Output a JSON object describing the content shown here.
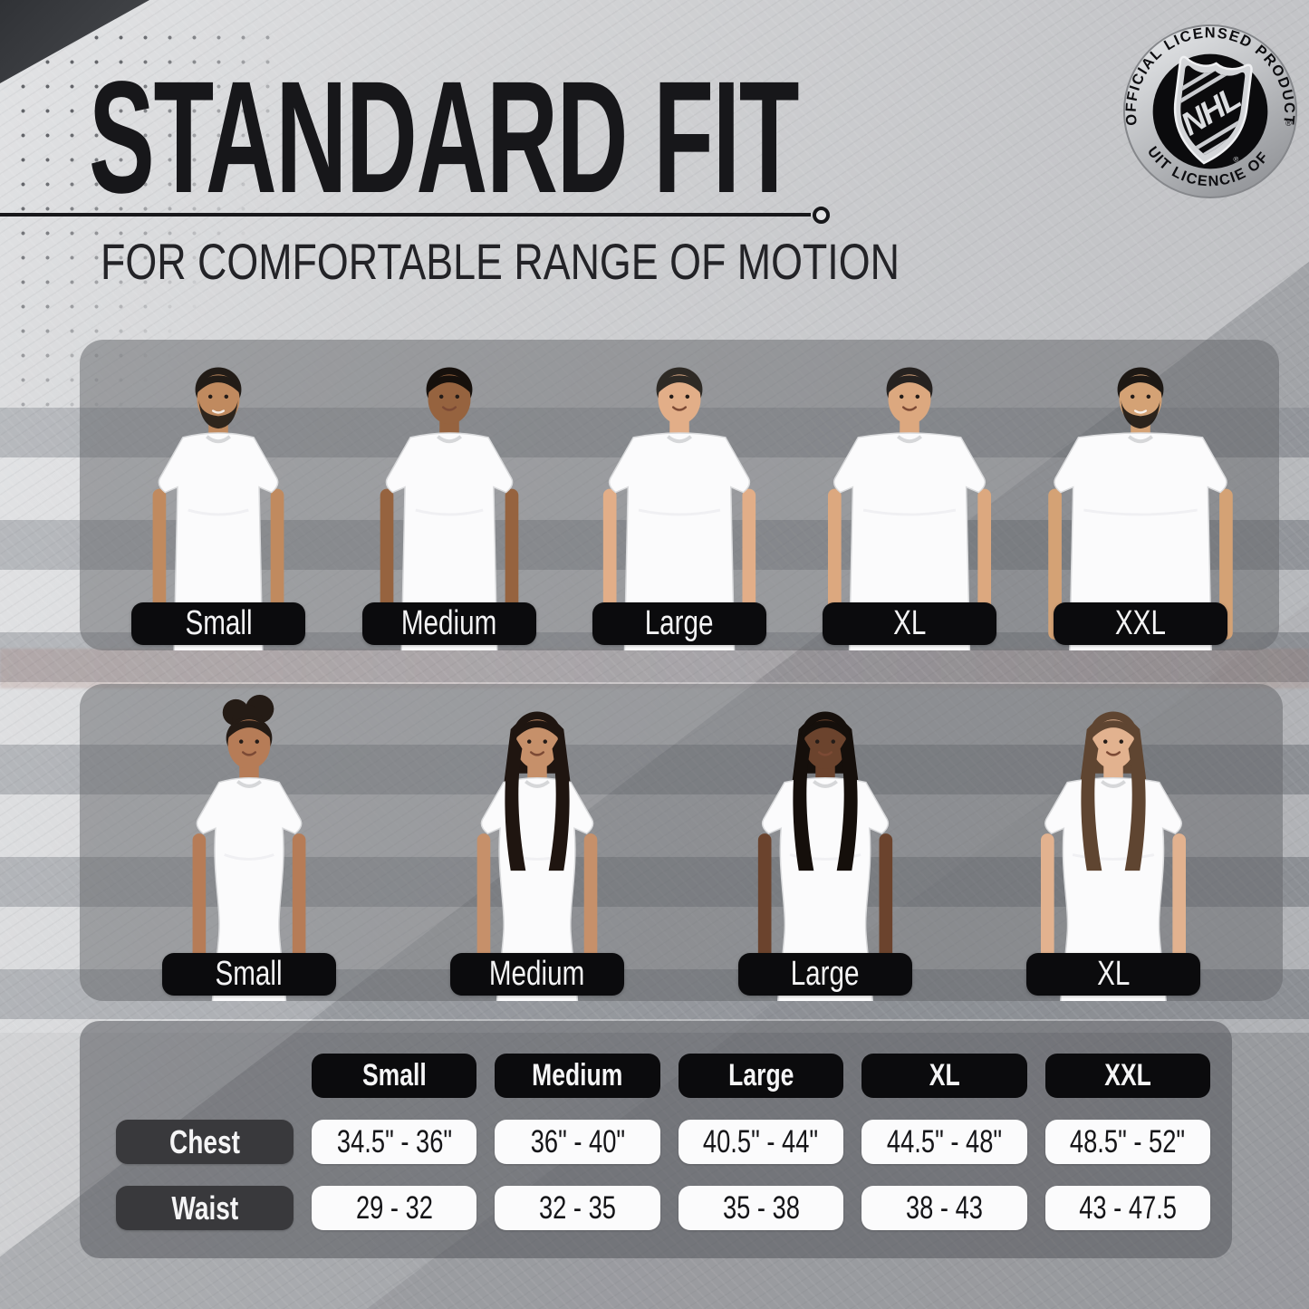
{
  "page": {
    "title": "STANDARD FIT",
    "subtitle": "FOR COMFORTABLE RANGE OF MOTION"
  },
  "badge": {
    "top_text": "OFFICIAL LICENSED PRODUCT",
    "bottom_text": "PRODUIT LICENCIE OFFICIEL",
    "logo_text": "NHL",
    "registered_mark": "®"
  },
  "mens_row": {
    "labels": [
      "Small",
      "Medium",
      "Large",
      "XL",
      "XXL"
    ]
  },
  "womens_row": {
    "labels": [
      "Small",
      "Medium",
      "Large",
      "XL"
    ]
  },
  "size_table": {
    "columns": [
      "Small",
      "Medium",
      "Large",
      "XL",
      "XXL"
    ],
    "rows": [
      {
        "label": "Chest",
        "values": [
          "34.5\" - 36\"",
          "36\" - 40\"",
          "40.5\" - 44\"",
          "44.5\" - 48\"",
          "48.5\" - 52\""
        ]
      },
      {
        "label": "Waist",
        "values": [
          "29 - 32",
          "32 - 35",
          "35 - 38",
          "38 - 43",
          "43 - 47.5"
        ]
      }
    ]
  },
  "chart_data": {
    "type": "table",
    "title": "STANDARD FIT",
    "subtitle": "FOR COMFORTABLE RANGE OF MOTION",
    "columns": [
      "Small",
      "Medium",
      "Large",
      "XL",
      "XXL"
    ],
    "rows": [
      {
        "label": "Chest",
        "values": [
          "34.5\" - 36\"",
          "36\" - 40\"",
          "40.5\" - 44\"",
          "44.5\" - 48\"",
          "48.5\" - 52\""
        ]
      },
      {
        "label": "Waist",
        "values": [
          "29 - 32",
          "32 - 35",
          "35 - 38",
          "38 - 43",
          "43 - 47.5"
        ]
      }
    ],
    "mens_sizes_shown": [
      "Small",
      "Medium",
      "Large",
      "XL",
      "XXL"
    ],
    "womens_sizes_shown": [
      "Small",
      "Medium",
      "Large",
      "XL"
    ]
  },
  "models": {
    "men": [
      {
        "skin": "#c08a5f",
        "hair": "#221c17",
        "beard": true,
        "build": 46
      },
      {
        "skin": "#96633f",
        "hair": "#16100c",
        "beard": false,
        "build": 50
      },
      {
        "skin": "#e2ae88",
        "hair": "#2e2a25",
        "beard": false,
        "build": 58
      },
      {
        "skin": "#dca87f",
        "hair": "#262220",
        "beard": false,
        "build": 64
      },
      {
        "skin": "#d4a275",
        "hair": "#1d1814",
        "beard": true,
        "build": 76
      }
    ],
    "women": [
      {
        "skin": "#b67c57",
        "hair": "#241b15",
        "hair_style": "updo",
        "build": 40
      },
      {
        "skin": "#c6906a",
        "hair": "#1f1510",
        "hair_style": "long",
        "build": 44
      },
      {
        "skin": "#6b432d",
        "hair": "#150f0b",
        "hair_style": "long",
        "build": 52
      },
      {
        "skin": "#e2b28f",
        "hair": "#5f4531",
        "hair_style": "long",
        "build": 58
      }
    ]
  },
  "colors": {
    "pill_black": "#0b0b0d",
    "pill_dark_gray": "#39393c",
    "pill_white": "#fbfbfc",
    "title_text": "#17171a",
    "shirt_white": "#fbfbfc"
  }
}
